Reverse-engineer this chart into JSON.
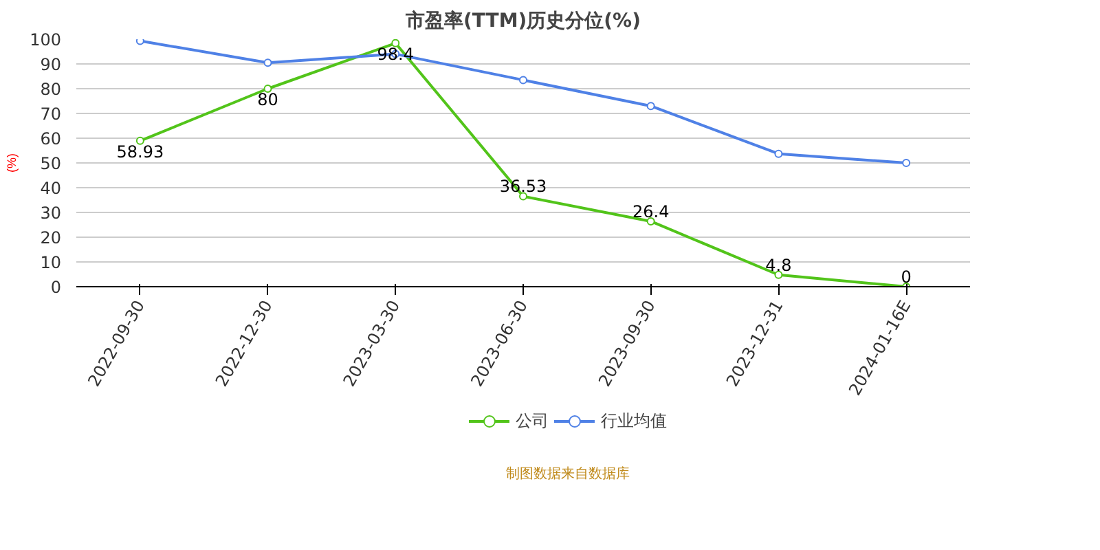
{
  "chart_data": {
    "type": "line",
    "title": "市盈率(TTM)历史分位(%)",
    "ylabel": "(%)",
    "categories": [
      "2022-09-30",
      "2022-12-30",
      "2023-03-30",
      "2023-06-30",
      "2023-09-30",
      "2023-12-31",
      "2024-01-16E"
    ],
    "series": [
      {
        "name": "公司",
        "color": "#52c41a",
        "values": [
          58.93,
          80,
          98.4,
          36.53,
          26.4,
          4.8,
          0
        ],
        "value_labels": [
          "58.93",
          "80",
          "98.4",
          "36.53",
          "26.4",
          "4.8",
          "0"
        ]
      },
      {
        "name": "行业均值",
        "color": "#4f81e6",
        "values": [
          99.3,
          90.5,
          94,
          83.5,
          73,
          53.7,
          50
        ]
      }
    ],
    "ylim": [
      0,
      100
    ],
    "yticks": [
      0,
      10,
      20,
      30,
      40,
      50,
      60,
      70,
      80,
      90,
      100
    ],
    "grid": "y",
    "legend": "bottom",
    "marker": "circle",
    "line_style": "solid",
    "annotations": [
      "制图数据来自数据库"
    ]
  }
}
